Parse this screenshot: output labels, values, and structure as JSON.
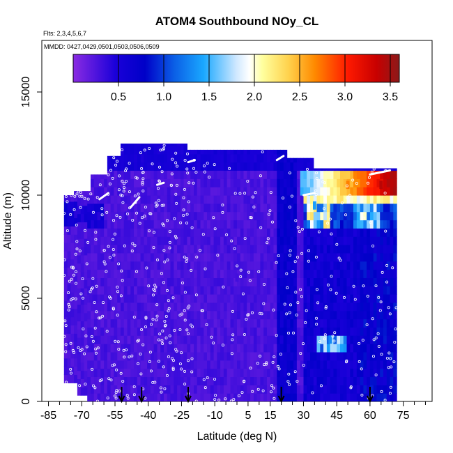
{
  "chart_data": {
    "type": "heatmap",
    "title": "ATOM4 Southbound NOy_CL",
    "annotations": {
      "flights": "Flts: 2,3,4,5,6,7",
      "dates": "MMDD: 0427,0429,0501,0503,0506,0509"
    },
    "xlabel": "Latitude (deg N)",
    "ylabel": "Altitude (m)",
    "xlim": [
      -88,
      88
    ],
    "ylim": [
      0,
      17500
    ],
    "x_ticks": [
      -85,
      -70,
      -55,
      -40,
      -25,
      -10,
      5,
      15,
      30,
      45,
      60,
      75
    ],
    "y_ticks": [
      0,
      5000,
      10000,
      15000
    ],
    "grid": false,
    "colorbar": {
      "range": [
        0.0,
        3.6
      ],
      "ticks": [
        0.5,
        1.0,
        1.5,
        2.0,
        2.5,
        3.0,
        3.5
      ],
      "tick_labels": [
        "0.5",
        "1.0",
        "1.5",
        "2.0",
        "2.5",
        "3.0",
        "3.5"
      ],
      "colors": [
        "#8a2be2",
        "#0000c8",
        "#1e90ff",
        "#ffffff",
        "#ffff80",
        "#ff9900",
        "#ff0000",
        "#8b0000"
      ]
    },
    "x_range_data": [
      -78,
      72
    ],
    "surface_markers_lat": [
      -52,
      -43,
      -22,
      20,
      60
    ],
    "values": [
      {
        "lat": -66,
        "alt": 5000,
        "value": 0.3
      },
      {
        "lat": -50,
        "alt": 9000,
        "value": 0.35
      },
      {
        "lat": -30,
        "alt": 11500,
        "value": 0.5
      },
      {
        "lat": 0,
        "alt": 6000,
        "value": 0.3
      },
      {
        "lat": 20,
        "alt": 3000,
        "value": 0.5
      },
      {
        "lat": 35,
        "alt": 9500,
        "value": 1.4
      },
      {
        "lat": 42,
        "alt": 3000,
        "value": 1.3
      },
      {
        "lat": 50,
        "alt": 10500,
        "value": 2.7
      },
      {
        "lat": 65,
        "alt": 10500,
        "value": 3.4
      },
      {
        "lat": 60,
        "alt": 5000,
        "value": 0.6
      }
    ]
  }
}
